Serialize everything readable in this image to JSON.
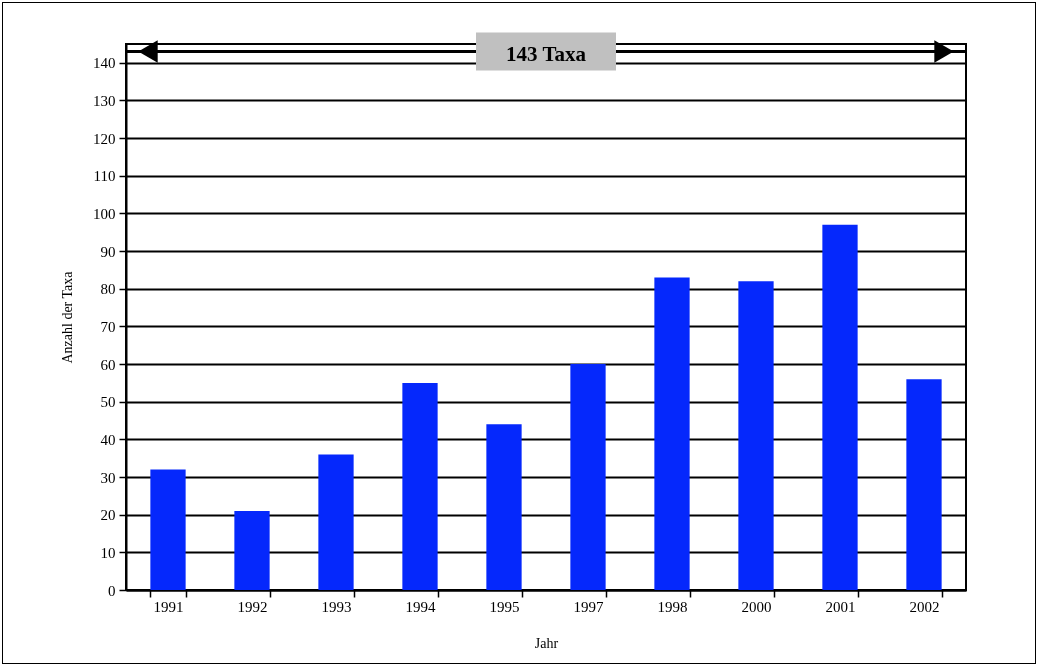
{
  "chart_data": {
    "type": "bar",
    "xlabel": "Jahr",
    "ylabel": "Anzahl der Taxa",
    "categories": [
      "1991",
      "1992",
      "1993",
      "1994",
      "1995",
      "1997",
      "1998",
      "2000",
      "2001",
      "2002"
    ],
    "values": [
      32,
      21,
      36,
      55,
      44,
      60,
      83,
      82,
      97,
      56
    ],
    "color": "#0528fc",
    "ylim": [
      0,
      145
    ],
    "yticks": [
      0,
      10,
      20,
      30,
      40,
      50,
      60,
      70,
      80,
      90,
      100,
      110,
      120,
      130,
      140
    ],
    "grid": "y",
    "ref_lines": [
      {
        "axis": "y",
        "value": 143,
        "label": "143 Taxa"
      }
    ]
  }
}
